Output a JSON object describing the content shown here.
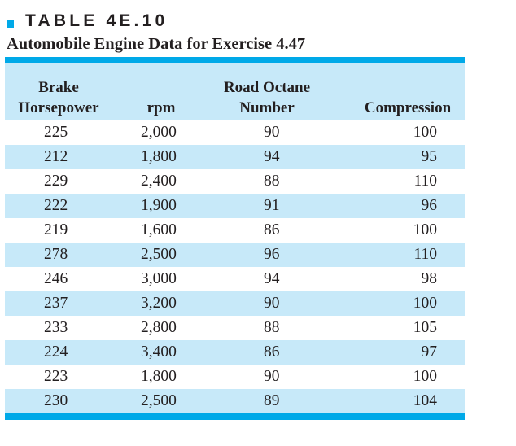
{
  "table": {
    "label": "TABLE 4E.10",
    "title": "Automobile Engine Data for Exercise 4.47",
    "accent_color": "#00a9e8",
    "shade_color": "#c7e9f9",
    "headers": [
      {
        "line1": "Brake",
        "line2": "Horsepower"
      },
      {
        "line1": "",
        "line2": "rpm"
      },
      {
        "line1": "Road Octane",
        "line2": "Number"
      },
      {
        "line1": "",
        "line2": "Compression"
      }
    ],
    "rows": [
      [
        "225",
        "2,000",
        "90",
        "100"
      ],
      [
        "212",
        "1,800",
        "94",
        "95"
      ],
      [
        "229",
        "2,400",
        "88",
        "110"
      ],
      [
        "222",
        "1,900",
        "91",
        "96"
      ],
      [
        "219",
        "1,600",
        "86",
        "100"
      ],
      [
        "278",
        "2,500",
        "96",
        "110"
      ],
      [
        "246",
        "3,000",
        "94",
        "98"
      ],
      [
        "237",
        "3,200",
        "90",
        "100"
      ],
      [
        "233",
        "2,800",
        "88",
        "105"
      ],
      [
        "224",
        "3,400",
        "86",
        "97"
      ],
      [
        "223",
        "1,800",
        "90",
        "100"
      ],
      [
        "230",
        "2,500",
        "89",
        "104"
      ]
    ]
  }
}
